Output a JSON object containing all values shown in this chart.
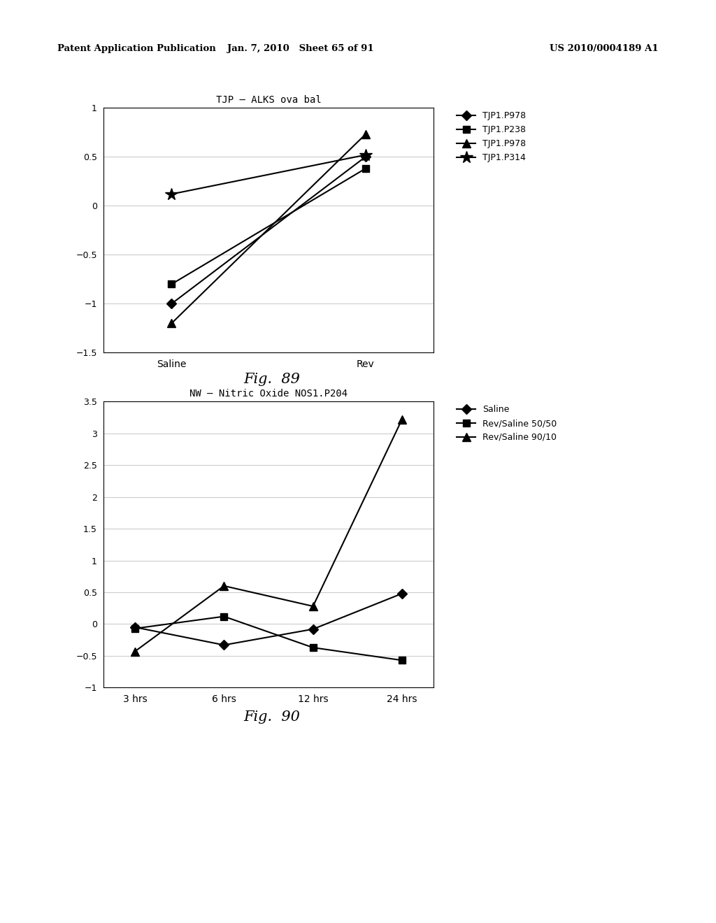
{
  "fig89": {
    "title": "TJP – ALKS ova bal",
    "x_labels": [
      "Saline",
      "Rev"
    ],
    "x_positions": [
      0,
      1
    ],
    "series": [
      {
        "label": "TJP1.P978",
        "marker": "D",
        "values": [
          -1.0,
          0.5
        ],
        "color": "#000000",
        "markersize": 7,
        "linewidth": 1.5
      },
      {
        "label": "TJP1.P238",
        "marker": "s",
        "values": [
          -0.8,
          0.38
        ],
        "color": "#000000",
        "markersize": 7,
        "linewidth": 1.5
      },
      {
        "label": "TJP1.P978",
        "marker": "^",
        "values": [
          -1.2,
          0.73
        ],
        "color": "#000000",
        "markersize": 9,
        "linewidth": 1.5
      },
      {
        "label": "TJP1.P314",
        "marker": "*",
        "values": [
          0.12,
          0.52
        ],
        "color": "#000000",
        "markersize": 13,
        "linewidth": 1.5
      }
    ],
    "ylim": [
      -1.5,
      1.0
    ],
    "yticks": [
      -1.5,
      -1.0,
      -0.5,
      0,
      0.5,
      1.0
    ],
    "ytick_labels": [
      "−1.5",
      "−1",
      "−0.5",
      "0",
      "0.5",
      "1"
    ],
    "grid_color": "#cccccc",
    "fig_caption": "Fig.  89"
  },
  "fig90": {
    "title": "NW – Nitric Oxide NOS1.P204",
    "x_labels": [
      "3 hrs",
      "6 hrs",
      "12 hrs",
      "24 hrs"
    ],
    "x_positions": [
      0,
      1,
      2,
      3
    ],
    "series": [
      {
        "label": "Saline",
        "marker": "D",
        "values": [
          -0.05,
          -0.33,
          -0.08,
          0.48
        ],
        "color": "#000000",
        "markersize": 7,
        "linewidth": 1.5
      },
      {
        "label": "Rev/Saline 50/50",
        "marker": "s",
        "values": [
          -0.07,
          0.12,
          -0.37,
          -0.57
        ],
        "color": "#000000",
        "markersize": 7,
        "linewidth": 1.5
      },
      {
        "label": "Rev/Saline 90/10",
        "marker": "^",
        "values": [
          -0.43,
          0.6,
          0.28,
          3.22
        ],
        "color": "#000000",
        "markersize": 9,
        "linewidth": 1.5
      }
    ],
    "ylim": [
      -1.0,
      3.5
    ],
    "yticks": [
      -1.0,
      -0.5,
      0,
      0.5,
      1.0,
      1.5,
      2.0,
      2.5,
      3.0,
      3.5
    ],
    "ytick_labels": [
      "−1",
      "−0.5",
      "0",
      "0.5",
      "1",
      "1.5",
      "2",
      "2.5",
      "3",
      "3.5"
    ],
    "grid_color": "#cccccc",
    "fig_caption": "Fig.  90"
  },
  "header_left": "Patent Application Publication",
  "header_mid": "Jan. 7, 2010   Sheet 65 of 91",
  "header_right": "US 2010/0004189 A1",
  "background_color": "#ffffff",
  "text_color": "#000000"
}
